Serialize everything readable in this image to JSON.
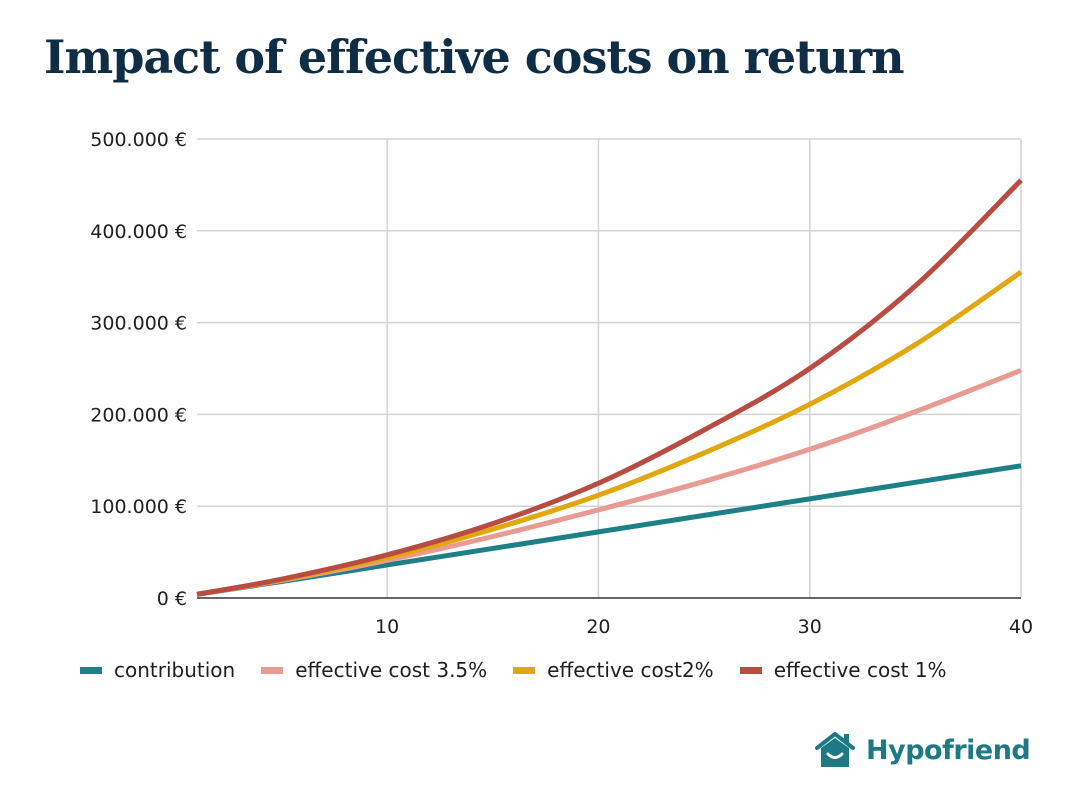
{
  "chart_data": {
    "type": "line",
    "title": "Impact of effective costs on return",
    "xlabel": "",
    "ylabel": "",
    "xlim": [
      1,
      40
    ],
    "ylim": [
      0,
      500000
    ],
    "x_ticks": [
      10,
      20,
      30,
      40
    ],
    "y_tick_values": [
      0,
      100000,
      200000,
      300000,
      400000,
      500000
    ],
    "y_tick_labels": [
      "0 €",
      "100.000 €",
      "200.000 €",
      "300.000 €",
      "400.000 €",
      "500.000 €"
    ],
    "grid": true,
    "legend_position": "bottom",
    "x": [
      1,
      5,
      10,
      15,
      20,
      25,
      30,
      35,
      40
    ],
    "series": [
      {
        "name": "contribution",
        "color": "#1d8087",
        "values": [
          4000,
          18000,
          36000,
          54000,
          72000,
          90000,
          108000,
          126000,
          144000
        ]
      },
      {
        "name": "effective cost 3.5%",
        "color": "#e99a93",
        "values": [
          4000,
          19000,
          41000,
          67000,
          96000,
          127000,
          162000,
          203000,
          248000
        ]
      },
      {
        "name": "effective cost2%",
        "color": "#e2a60e",
        "values": [
          4000,
          19800,
          44000,
          75000,
          112000,
          158000,
          211000,
          276000,
          355000
        ]
      },
      {
        "name": "effective cost 1%",
        "color": "#b84c42",
        "values": [
          4000,
          20500,
          47000,
          81000,
          125000,
          183000,
          250000,
          340000,
          455000
        ]
      }
    ]
  },
  "brand": {
    "name": "Hypofriend",
    "color": "#1d7a84"
  }
}
